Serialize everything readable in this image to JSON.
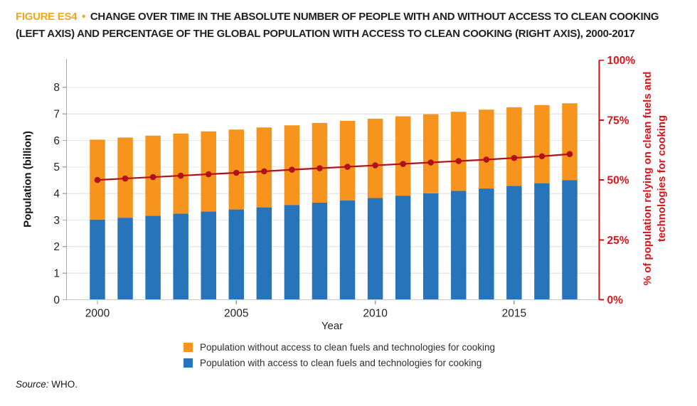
{
  "header": {
    "figure_label": "FIGURE ES4",
    "bullet": "•",
    "title_rest": "CHANGE OVER TIME IN THE ABSOLUTE NUMBER OF PEOPLE WITH AND WITHOUT ACCESS TO CLEAN COOKING (LEFT AXIS) AND PERCENTAGE OF THE GLOBAL POPULATION WITH ACCESS TO CLEAN COOKING (RIGHT AXIS), 2000-2017"
  },
  "footer": {
    "source_label": "Source:",
    "source_value": "WHO."
  },
  "colors": {
    "orange": "#f7941e",
    "blue": "#2874ba",
    "red_line": "#b01218",
    "red_axis": "#c41318",
    "red_label": "#d6161c",
    "grid": "#e7e7e7",
    "baseline": "#c9c9c9",
    "axis_gray": "#a9a9a9",
    "tick_gray": "#9b9b9b",
    "text_dark": "#231f20",
    "figure_label_orange": "#f6a51c"
  },
  "chart_data": {
    "type": "bar",
    "subtype": "stacked-bars-with-line",
    "title": "Change over time in the absolute number of people with and without access to clean cooking (left axis) and percentage of the global population with access to clean cooking (right axis), 2000-2017",
    "categories": [
      "2000",
      "2001",
      "2002",
      "2003",
      "2004",
      "2005",
      "2006",
      "2007",
      "2008",
      "2009",
      "2010",
      "2011",
      "2012",
      "2013",
      "2014",
      "2015",
      "2016",
      "2017"
    ],
    "series": [
      {
        "name": "Population with access to clean fuels and technologies for cooking",
        "color_key": "blue",
        "values": [
          3.02,
          3.09,
          3.16,
          3.24,
          3.32,
          3.4,
          3.48,
          3.57,
          3.66,
          3.74,
          3.83,
          3.92,
          4.01,
          4.1,
          4.19,
          4.29,
          4.39,
          4.5
        ]
      },
      {
        "name": "Population without access to clean fuels and technologies for cooking",
        "color_key": "orange",
        "values": [
          3.01,
          3.02,
          3.02,
          3.02,
          3.02,
          3.01,
          3.01,
          3.0,
          3.0,
          3.0,
          2.99,
          2.99,
          2.98,
          2.98,
          2.97,
          2.96,
          2.94,
          2.9
        ]
      }
    ],
    "line_series": {
      "name": "% of population relying on clean fuels and technologies for cooking",
      "axis": "right",
      "values": [
        50.0,
        50.6,
        51.2,
        51.8,
        52.4,
        53.0,
        53.6,
        54.3,
        54.9,
        55.5,
        56.1,
        56.7,
        57.3,
        57.9,
        58.5,
        59.2,
        59.9,
        60.8
      ]
    },
    "left_axis": {
      "label": "Population (billion)",
      "ticks": [
        0,
        1,
        2,
        3,
        4,
        5,
        6,
        7,
        8
      ],
      "range": [
        0,
        8
      ]
    },
    "right_axis": {
      "label_line1": "% of population relying on clean fuels and",
      "label_line2": "technologies for cooking",
      "ticks": [
        {
          "value": 0,
          "label": "0%"
        },
        {
          "value": 25,
          "label": "25%"
        },
        {
          "value": 50,
          "label": "50%"
        },
        {
          "value": 75,
          "label": "75%"
        },
        {
          "value": 100,
          "label": "100%"
        }
      ],
      "range": [
        0,
        100
      ]
    },
    "x_axis": {
      "label": "Year",
      "tick_labels": [
        "2000",
        "2005",
        "2010",
        "2015"
      ]
    },
    "legend": [
      {
        "label": "Population without access to clean fuels and technologies for cooking",
        "color_key": "orange"
      },
      {
        "label": "Population with access to clean fuels and technologies for cooking",
        "color_key": "blue"
      }
    ],
    "grid": true,
    "legend_position": "bottom"
  }
}
